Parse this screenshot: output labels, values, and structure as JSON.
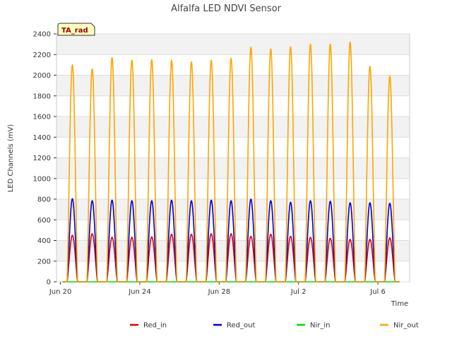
{
  "chart_data": {
    "type": "line",
    "title": "Alfalfa LED NDVI Sensor",
    "xlabel": "Time",
    "ylabel": "LED Channels (mV)",
    "badge": "TA_rad",
    "ylim": [
      0,
      2400
    ],
    "yticks": [
      0,
      200,
      400,
      600,
      800,
      1000,
      1200,
      1400,
      1600,
      1800,
      2000,
      2200,
      2400
    ],
    "xlim_days": [
      -0.2,
      17.6
    ],
    "xticks": [
      {
        "day": 0,
        "label": "Jun 20"
      },
      {
        "day": 4,
        "label": "Jun 24"
      },
      {
        "day": 8,
        "label": "Jun 28"
      },
      {
        "day": 12,
        "label": "Jul 2"
      },
      {
        "day": 16,
        "label": "Jul 6"
      }
    ],
    "x_units": "days since Jun 20 00:00",
    "daily_peak_day_offsets": [
      0.6,
      1.6,
      2.6,
      3.6,
      4.6,
      5.6,
      6.6,
      7.6,
      8.6,
      9.6,
      10.6,
      11.6,
      12.6,
      13.6,
      14.6,
      15.6,
      16.6
    ],
    "daylight_halfwidth_days": 0.27,
    "series": [
      {
        "name": "Red_in",
        "color": "#dd0000",
        "daily_peaks": [
          450,
          465,
          430,
          430,
          435,
          460,
          460,
          465,
          465,
          440,
          460,
          440,
          430,
          420,
          410,
          410,
          425
        ]
      },
      {
        "name": "Red_out",
        "color": "#0000dd",
        "daily_peaks": [
          805,
          785,
          790,
          785,
          785,
          790,
          785,
          790,
          785,
          800,
          785,
          770,
          785,
          780,
          765,
          765,
          760
        ]
      },
      {
        "name": "Nir_in",
        "color": "#00dd00",
        "daily_peaks": [
          0,
          0,
          0,
          0,
          0,
          0,
          0,
          0,
          0,
          0,
          0,
          0,
          0,
          0,
          0,
          0,
          0
        ]
      },
      {
        "name": "Nir_out",
        "color": "#ffa500",
        "daily_peaks": [
          2100,
          2060,
          2170,
          2145,
          2150,
          2145,
          2130,
          2145,
          2165,
          2270,
          2255,
          2275,
          2300,
          2300,
          2320,
          2085,
          1990
        ]
      }
    ],
    "grid": true,
    "legend_position": "bottom-center"
  }
}
